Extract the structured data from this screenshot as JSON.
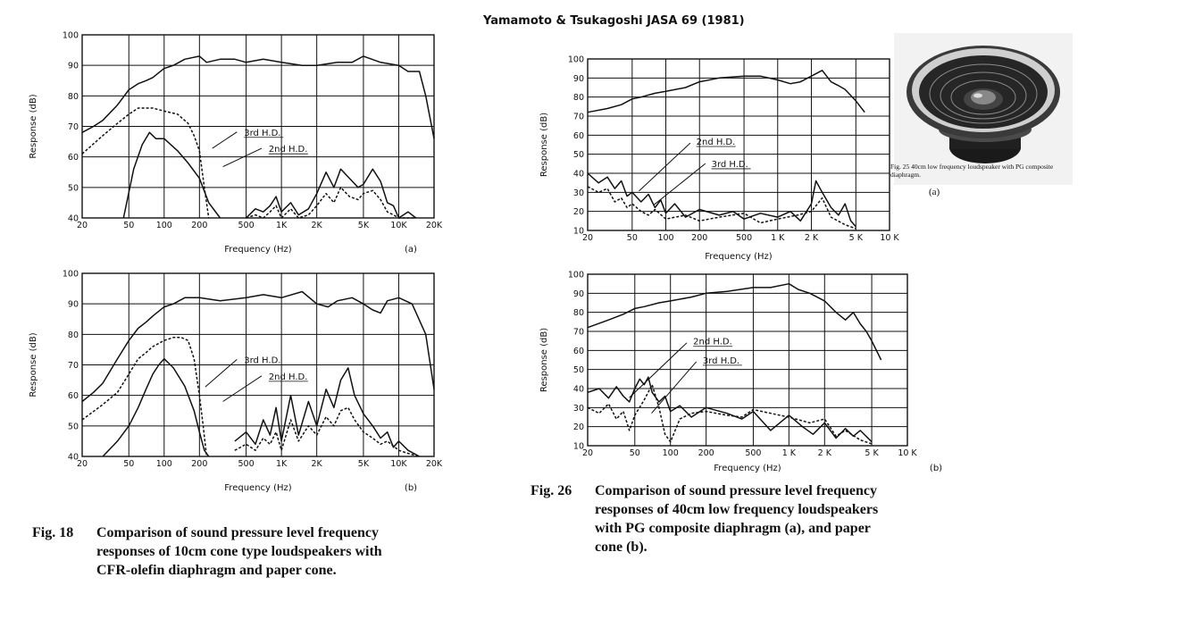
{
  "header": "Yamamoto & Tsukagoshi JASA 69 (1981)",
  "fig18": {
    "number": "Fig. 18",
    "caption": "Comparison of sound pressure level frequency\nresponses of 10cm cone type loudspeakers with\nCFR-olefin diaphragm and paper cone."
  },
  "fig26": {
    "number": "Fig. 26",
    "caption": "Comparison of sound pressure level frequency\nresponses of 40cm low frequency loudspeakers\nwith PG composite diaphragm (a), and paper\ncone (b)."
  },
  "fig25": {
    "caption": "Fig. 25  40cm low frequency loudspeaker with PG composite diaphragm.",
    "sublabel": "(a)"
  },
  "colors": {
    "ink": "#111111",
    "grid": "#222222",
    "paper": "#ffffff"
  },
  "chart_data": [
    {
      "type": "line",
      "id": "fig18a",
      "panel_label": "(a)",
      "xlabel": "Frequency  (Hz)",
      "ylabel": "Response (dB)",
      "xscale": "log",
      "xlim": [
        20,
        20000
      ],
      "ylim": [
        40,
        100
      ],
      "xticks": [
        [
          20,
          "20"
        ],
        [
          50,
          "50"
        ],
        [
          100,
          "100"
        ],
        [
          200,
          "200"
        ],
        [
          500,
          "500"
        ],
        [
          1000,
          "1K"
        ],
        [
          2000,
          "2K"
        ],
        [
          5000,
          "5K"
        ],
        [
          10000,
          "10K"
        ],
        [
          20000,
          "20K"
        ]
      ],
      "yticks": [
        40,
        50,
        60,
        70,
        80,
        90,
        100
      ],
      "annotations": [
        "3rd H.D.",
        "2nd H.D."
      ],
      "series": [
        {
          "style": "solid",
          "x": [
            20,
            25,
            30,
            40,
            50,
            60,
            70,
            80,
            100,
            120,
            150,
            200,
            230,
            300,
            400,
            500,
            700,
            1000,
            1500,
            2000,
            3000,
            4000,
            5000,
            7000,
            10000,
            12000,
            15000,
            17000,
            20000
          ],
          "y": [
            68,
            70,
            72,
            77,
            82,
            84,
            85,
            86,
            89,
            90,
            92,
            93,
            91,
            92,
            92,
            91,
            92,
            91,
            90,
            90,
            91,
            91,
            93,
            91,
            90,
            88,
            88,
            80,
            66
          ]
        },
        {
          "style": "dashed",
          "x": [
            20,
            30,
            40,
            50,
            60,
            70,
            80,
            100,
            130,
            160,
            180,
            200,
            220,
            240
          ],
          "y": [
            61,
            67,
            71,
            74,
            76,
            76,
            76,
            75,
            74,
            71,
            67,
            62,
            50,
            40
          ]
        },
        {
          "style": "solid",
          "x": [
            45,
            55,
            65,
            75,
            85,
            100,
            130,
            160,
            200,
            240,
            300
          ],
          "y": [
            40,
            56,
            64,
            68,
            66,
            66,
            62,
            58,
            53,
            45,
            40
          ]
        },
        {
          "style": "solid",
          "x": [
            500,
            600,
            700,
            800,
            900,
            1000,
            1200,
            1400,
            1700,
            2000,
            2400,
            2800,
            3200,
            3800,
            4500,
            5000,
            6000,
            7000,
            8000,
            9000,
            10000,
            12000,
            14000
          ],
          "y": [
            40,
            43,
            42,
            44,
            47,
            42,
            45,
            41,
            43,
            48,
            55,
            50,
            56,
            53,
            50,
            51,
            56,
            52,
            45,
            44,
            40,
            42,
            40
          ]
        },
        {
          "style": "dashed",
          "x": [
            500,
            600,
            700,
            800,
            900,
            1000,
            1200,
            1400,
            1700,
            2000,
            2400,
            2800,
            3200,
            3800,
            4500,
            5000,
            6000,
            7000,
            8000,
            9000,
            10000,
            12000,
            14000
          ],
          "y": [
            40,
            41,
            40,
            42,
            44,
            40,
            43,
            40,
            41,
            44,
            48,
            45,
            50,
            47,
            46,
            48,
            49,
            46,
            42,
            41,
            40,
            40,
            40
          ]
        }
      ]
    },
    {
      "type": "line",
      "id": "fig18b",
      "panel_label": "(b)",
      "xlabel": "Frequency  (Hz)",
      "ylabel": "Response (dB)",
      "xscale": "log",
      "xlim": [
        20,
        20000
      ],
      "ylim": [
        40,
        100
      ],
      "xticks": [
        [
          20,
          "20"
        ],
        [
          50,
          "50"
        ],
        [
          100,
          "100"
        ],
        [
          200,
          "200"
        ],
        [
          500,
          "500"
        ],
        [
          1000,
          "1K"
        ],
        [
          2000,
          "2K"
        ],
        [
          5000,
          "5K"
        ],
        [
          10000,
          "10K"
        ],
        [
          20000,
          "20K"
        ]
      ],
      "yticks": [
        40,
        50,
        60,
        70,
        80,
        90,
        100
      ],
      "annotations": [
        "3rd H.D.",
        "2nd H.D."
      ],
      "series": [
        {
          "style": "solid",
          "x": [
            20,
            25,
            30,
            40,
            50,
            60,
            70,
            80,
            100,
            120,
            150,
            200,
            300,
            500,
            700,
            1000,
            1500,
            2000,
            2500,
            3000,
            4000,
            5000,
            6000,
            7000,
            8000,
            10000,
            13000,
            17000,
            20000
          ],
          "y": [
            58,
            61,
            64,
            72,
            78,
            82,
            84,
            86,
            89,
            90,
            92,
            92,
            91,
            92,
            93,
            92,
            94,
            90,
            89,
            91,
            92,
            90,
            88,
            87,
            91,
            92,
            90,
            80,
            62
          ]
        },
        {
          "style": "dashed",
          "x": [
            20,
            30,
            40,
            50,
            60,
            70,
            80,
            100,
            120,
            140,
            160,
            180,
            200,
            215,
            230
          ],
          "y": [
            52,
            57,
            61,
            67,
            72,
            74,
            76,
            78,
            79,
            79,
            78,
            72,
            60,
            50,
            40
          ]
        },
        {
          "style": "solid",
          "x": [
            30,
            40,
            50,
            60,
            70,
            80,
            90,
            100,
            120,
            150,
            180,
            200,
            220,
            240
          ],
          "y": [
            40,
            45,
            50,
            56,
            62,
            67,
            70,
            72,
            69,
            63,
            55,
            48,
            42,
            40
          ]
        },
        {
          "style": "solid",
          "x": [
            400,
            500,
            600,
            700,
            800,
            900,
            1000,
            1200,
            1400,
            1700,
            2000,
            2400,
            2800,
            3200,
            3700,
            4200,
            5000,
            6000,
            7000,
            8000,
            9000,
            10000,
            12000,
            15000
          ],
          "y": [
            45,
            48,
            44,
            52,
            47,
            56,
            45,
            60,
            47,
            58,
            50,
            62,
            56,
            65,
            69,
            60,
            54,
            50,
            46,
            48,
            43,
            45,
            42,
            40
          ]
        },
        {
          "style": "dashed",
          "x": [
            400,
            500,
            600,
            700,
            800,
            900,
            1000,
            1200,
            1400,
            1700,
            2000,
            2400,
            2800,
            3200,
            3700,
            4200,
            5000,
            6000,
            7000,
            8000,
            10000,
            12000,
            15000
          ],
          "y": [
            42,
            44,
            42,
            46,
            44,
            48,
            42,
            52,
            45,
            50,
            47,
            53,
            50,
            55,
            56,
            52,
            48,
            46,
            44,
            45,
            42,
            41,
            40
          ]
        }
      ]
    },
    {
      "type": "line",
      "id": "fig26a",
      "xlabel": "Frequency  (Hz)",
      "ylabel": "Response (dB)",
      "xscale": "log",
      "xlim": [
        20,
        10000
      ],
      "ylim": [
        10,
        100
      ],
      "xticks": [
        [
          20,
          "20"
        ],
        [
          50,
          "50"
        ],
        [
          100,
          "100"
        ],
        [
          200,
          "200"
        ],
        [
          500,
          "500"
        ],
        [
          1000,
          "1 K"
        ],
        [
          2000,
          "2 K"
        ],
        [
          5000,
          "5 K"
        ],
        [
          10000,
          "10 K"
        ]
      ],
      "yticks": [
        10,
        20,
        30,
        40,
        50,
        60,
        70,
        80,
        90,
        100
      ],
      "annotations": [
        "2nd H.D.",
        "3rd H.D."
      ],
      "series": [
        {
          "style": "solid",
          "x": [
            20,
            30,
            40,
            50,
            60,
            80,
            100,
            150,
            200,
            300,
            500,
            700,
            1000,
            1300,
            1600,
            2000,
            2500,
            3000,
            3500,
            4000,
            5000,
            6000
          ],
          "y": [
            72,
            74,
            76,
            79,
            80,
            82,
            83,
            85,
            88,
            90,
            91,
            91,
            89,
            87,
            88,
            91,
            94,
            88,
            86,
            84,
            78,
            72
          ]
        },
        {
          "style": "solid",
          "x": [
            20,
            25,
            30,
            35,
            40,
            45,
            50,
            60,
            70,
            80,
            90,
            100,
            120,
            150,
            200,
            300,
            400,
            500,
            700,
            1000,
            1300,
            1600,
            2000,
            2200,
            2500,
            3000,
            3500,
            4000,
            4500,
            5000
          ],
          "y": [
            40,
            35,
            38,
            32,
            36,
            28,
            30,
            25,
            29,
            22,
            26,
            19,
            24,
            17,
            21,
            18,
            20,
            16,
            19,
            17,
            20,
            15,
            24,
            36,
            30,
            22,
            18,
            24,
            15,
            12
          ]
        },
        {
          "style": "dashed",
          "x": [
            20,
            25,
            30,
            35,
            40,
            45,
            50,
            60,
            70,
            80,
            100,
            150,
            200,
            300,
            500,
            700,
            1000,
            1500,
            2000,
            2500,
            3000,
            4000,
            5000
          ],
          "y": [
            33,
            30,
            32,
            25,
            27,
            22,
            24,
            20,
            18,
            21,
            16,
            18,
            15,
            17,
            19,
            14,
            16,
            18,
            20,
            27,
            17,
            13,
            11
          ]
        }
      ]
    },
    {
      "type": "line",
      "id": "fig26b",
      "panel_label": "(b)",
      "xlabel": "Frequency  (Hz)",
      "ylabel": "Response (dB)",
      "xscale": "log",
      "xlim": [
        20,
        10000
      ],
      "ylim": [
        10,
        100
      ],
      "xticks": [
        [
          20,
          "20"
        ],
        [
          50,
          "50"
        ],
        [
          100,
          "100"
        ],
        [
          200,
          "200"
        ],
        [
          500,
          "500"
        ],
        [
          1000,
          "1 K"
        ],
        [
          2000,
          "2 K"
        ],
        [
          5000,
          "5 K"
        ],
        [
          10000,
          "10 K"
        ]
      ],
      "yticks": [
        10,
        20,
        30,
        40,
        50,
        60,
        70,
        80,
        90,
        100
      ],
      "annotations": [
        "2nd H.D.",
        "3rd H.D."
      ],
      "series": [
        {
          "style": "solid",
          "x": [
            20,
            30,
            40,
            50,
            60,
            80,
            100,
            150,
            200,
            300,
            500,
            700,
            1000,
            1200,
            1500,
            2000,
            2500,
            3000,
            3500,
            4000,
            4500,
            5000,
            6000
          ],
          "y": [
            72,
            76,
            79,
            82,
            83,
            85,
            86,
            88,
            90,
            91,
            93,
            93,
            95,
            92,
            90,
            86,
            80,
            76,
            80,
            74,
            70,
            65,
            55
          ]
        },
        {
          "style": "solid",
          "x": [
            20,
            25,
            30,
            35,
            40,
            45,
            50,
            55,
            60,
            65,
            70,
            80,
            90,
            100,
            120,
            150,
            200,
            300,
            400,
            500,
            700,
            1000,
            1300,
            1600,
            2000,
            2500,
            3000,
            3500,
            4000,
            5000
          ],
          "y": [
            38,
            40,
            35,
            41,
            36,
            33,
            40,
            45,
            42,
            46,
            38,
            33,
            36,
            28,
            31,
            25,
            30,
            27,
            24,
            28,
            18,
            26,
            20,
            16,
            22,
            14,
            19,
            15,
            18,
            12
          ]
        },
        {
          "style": "dashed",
          "x": [
            20,
            25,
            30,
            35,
            40,
            45,
            50,
            60,
            70,
            80,
            90,
            100,
            120,
            150,
            200,
            300,
            400,
            500,
            700,
            1000,
            1500,
            2000,
            2500,
            3000,
            4000,
            5000
          ],
          "y": [
            30,
            27,
            32,
            24,
            28,
            18,
            26,
            34,
            42,
            30,
            16,
            12,
            24,
            27,
            28,
            26,
            25,
            29,
            27,
            25,
            22,
            24,
            15,
            18,
            13,
            11
          ]
        }
      ]
    }
  ]
}
